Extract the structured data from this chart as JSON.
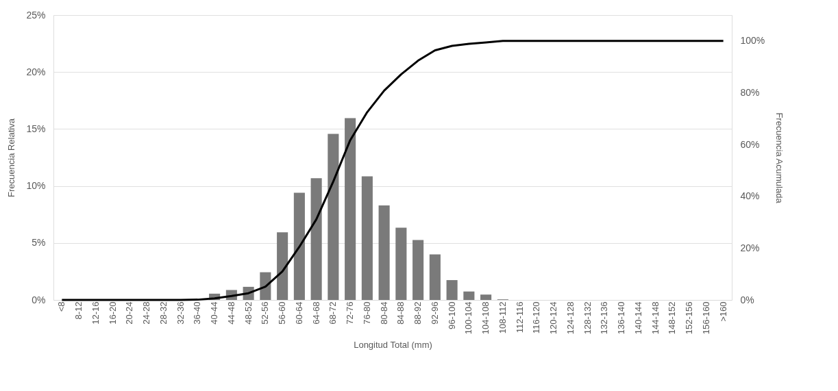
{
  "chart_data": {
    "type": "bar",
    "xlabel": "Longitud Total (mm)",
    "ylabel": "Frecuencia Relativa",
    "y2label": "Frecuencia Acumulada",
    "categories": [
      "<8",
      "8-12",
      "12-16",
      "16-20",
      "20-24",
      "24-28",
      "28-32",
      "32-36",
      "36-40",
      "40-44",
      "44-48",
      "48-52",
      "52-56",
      "56-60",
      "60-64",
      "64-68",
      "68-72",
      "72-76",
      "76-80",
      "80-84",
      "84-88",
      "88-92",
      "92-96",
      "96-100",
      "100-104",
      "104-108",
      "108-112",
      "112-116",
      "116-120",
      "120-124",
      "124-128",
      "128-132",
      "132-136",
      "136-140",
      "140-144",
      "144-148",
      "148-152",
      "152-156",
      "156-160",
      ">160"
    ],
    "series": [
      {
        "color": "#7a7a7a",
        "values": [
          0,
          0,
          0,
          0,
          0,
          0,
          0,
          0.05,
          0.02,
          0.55,
          0.87,
          1.15,
          2.43,
          5.94,
          9.41,
          10.68,
          14.57,
          15.96,
          10.84,
          8.3,
          6.34,
          5.26,
          3.99,
          1.74,
          0.74,
          0.47,
          0.05,
          0,
          0,
          0,
          0,
          0,
          0,
          0,
          0,
          0,
          0,
          0,
          0,
          0
        ]
      },
      {
        "type": "line",
        "axis": "y2",
        "color": "#000000",
        "values": [
          0,
          0,
          0,
          0,
          0,
          0,
          0,
          0,
          0.1,
          0.6,
          1.5,
          2.6,
          5.1,
          11,
          20.5,
          31.1,
          45.7,
          61.7,
          72.5,
          80.8,
          87.1,
          92.4,
          96.4,
          98.1,
          98.9,
          99.4,
          100,
          100,
          100,
          100,
          100,
          100,
          100,
          100,
          100,
          100,
          100,
          100,
          100,
          100
        ]
      }
    ],
    "ylim": [
      0,
      25
    ],
    "yticks": [
      {
        "value": 0,
        "label": "0%"
      },
      {
        "value": 5,
        "label": "5%"
      },
      {
        "value": 10,
        "label": "10%"
      },
      {
        "value": 15,
        "label": "15%"
      },
      {
        "value": 20,
        "label": "20%"
      },
      {
        "value": 25,
        "label": "25%"
      }
    ],
    "y2lim": [
      0,
      110
    ],
    "y2ticks": [
      {
        "value": 0,
        "label": "0%"
      },
      {
        "value": 20,
        "label": "20%"
      },
      {
        "value": 40,
        "label": "40%"
      },
      {
        "value": 60,
        "label": "60%"
      },
      {
        "value": 80,
        "label": "80%"
      },
      {
        "value": 100,
        "label": "100%"
      }
    ],
    "grid": "y",
    "line_style": "solid",
    "marker": "none"
  }
}
